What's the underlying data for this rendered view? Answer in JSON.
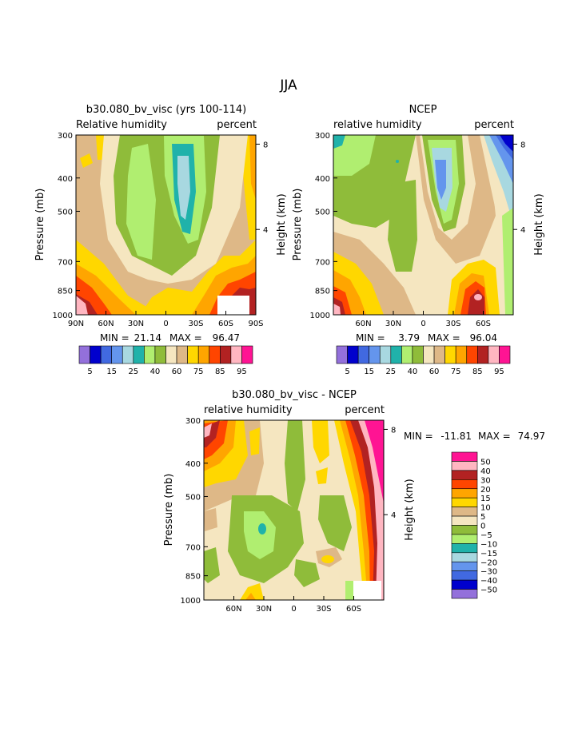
{
  "figure": {
    "title": "JJA"
  },
  "colors": {
    "abs": [
      "#9370db",
      "#0000cd",
      "#4169e1",
      "#6495ed",
      "#a8d8e0",
      "#20b2aa",
      "#b0ee70",
      "#8fbc3a",
      "#f5e6c0",
      "#deb887",
      "#ffd700",
      "#ffa500",
      "#ff4500",
      "#b22222",
      "#ffb6c1",
      "#ff1493"
    ],
    "diff": [
      "#9370db",
      "#0000cd",
      "#4169e1",
      "#6495ed",
      "#a8d8e0",
      "#20b2aa",
      "#b0ee70",
      "#8fbc3a",
      "#f5e6c0",
      "#deb887",
      "#ffd700",
      "#ffa500",
      "#ff4500",
      "#b22222",
      "#ffb6c1",
      "#ff1493"
    ]
  },
  "chart_data": [
    {
      "type": "contour",
      "title": "b30.080_bv_visc (yrs 100-114)",
      "left_label": "Relative humidity",
      "right_label": "percent",
      "ylabel": "Pressure (mb)",
      "y2label": "Height (km)",
      "x_ticks": [
        "90N",
        "60N",
        "30N",
        "0",
        "30S",
        "60S",
        "90S"
      ],
      "y_ticks": [
        "300",
        "400",
        "500",
        "700",
        "850",
        "1000"
      ],
      "y2_ticks": [
        "8",
        "4"
      ],
      "min_label": "MIN =",
      "min_value": "21.14",
      "max_label": "MAX =",
      "max_value": "96.47",
      "levels": [
        "5",
        "15",
        "25",
        "40",
        "60",
        "75",
        "85",
        "95"
      ]
    },
    {
      "type": "contour",
      "title": "NCEP",
      "left_label": "relative humidity",
      "right_label": "percent",
      "ylabel": "Pressure (mb)",
      "y2label": "Height (km)",
      "x_ticks": [
        "60N",
        "30N",
        "0",
        "30S",
        "60S"
      ],
      "y_ticks": [
        "300",
        "400",
        "500",
        "700",
        "850",
        "1000"
      ],
      "y2_ticks": [
        "8",
        "4"
      ],
      "min_label": "MIN =",
      "min_value": "3.79",
      "max_label": "MAX =",
      "max_value": "96.04",
      "levels": [
        "5",
        "15",
        "25",
        "40",
        "60",
        "75",
        "85",
        "95"
      ]
    },
    {
      "type": "contour",
      "title": "b30.080_bv_visc - NCEP",
      "left_label": "relative humidity",
      "right_label": "percent",
      "ylabel": "Pressure (mb)",
      "y2label": "Height (km)",
      "x_ticks": [
        "60N",
        "30N",
        "0",
        "30S",
        "60S"
      ],
      "y_ticks": [
        "300",
        "400",
        "500",
        "700",
        "850",
        "1000"
      ],
      "y2_ticks": [
        "8",
        "4"
      ],
      "min_label": "MIN =",
      "min_value": "-11.81",
      "max_label": "MAX =",
      "max_value": "74.97",
      "levels": [
        "50",
        "40",
        "30",
        "20",
        "15",
        "10",
        "5",
        "0",
        "−5",
        "−10",
        "−15",
        "−20",
        "−30",
        "−40",
        "−50"
      ]
    }
  ]
}
